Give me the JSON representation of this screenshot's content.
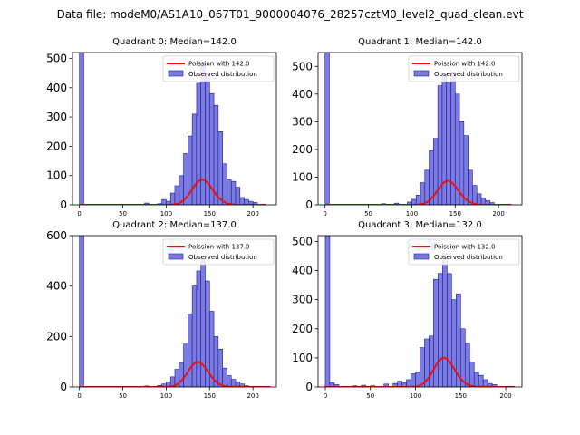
{
  "figure": {
    "suptitle": "Data file: modeM0/AS1A10_067T01_9000004076_28257cztM0_level2_quad_clean.evt",
    "colors": {
      "hist_fill": "#7b7be0",
      "hist_edge": "#1a1a9a",
      "poisson_line": "#e81010"
    }
  },
  "chart_data": [
    {
      "type": "bar",
      "title": "Quadrant 0: Median=142.0",
      "xlim": [
        -8,
        227
      ],
      "ylim": [
        0,
        520
      ],
      "xticks": [
        0,
        50,
        100,
        150,
        200
      ],
      "yticks": [
        0,
        100,
        200,
        300,
        400,
        500
      ],
      "bin_width": 5,
      "bins": [
        [
          0,
          520
        ],
        [
          75,
          6
        ],
        [
          90,
          4
        ],
        [
          95,
          18
        ],
        [
          100,
          12
        ],
        [
          105,
          40
        ],
        [
          110,
          65
        ],
        [
          115,
          100
        ],
        [
          120,
          175
        ],
        [
          125,
          235
        ],
        [
          130,
          310
        ],
        [
          135,
          415
        ],
        [
          140,
          480
        ],
        [
          145,
          450
        ],
        [
          150,
          380
        ],
        [
          155,
          340
        ],
        [
          160,
          250
        ],
        [
          165,
          140
        ],
        [
          170,
          85
        ],
        [
          175,
          80
        ],
        [
          180,
          60
        ],
        [
          185,
          25
        ],
        [
          190,
          18
        ],
        [
          195,
          12
        ],
        [
          200,
          8
        ]
      ],
      "curve": {
        "label": "Poission with 142.0",
        "lambda": 142.0,
        "scale": 2560,
        "x_range": [
          0,
          215
        ]
      },
      "legend": {
        "curve_label": "Poission with 142.0",
        "hist_label": "Observed distribution",
        "position": "top-right"
      }
    },
    {
      "type": "bar",
      "title": "Quadrant 1: Median=142.0",
      "xlim": [
        -8,
        227
      ],
      "ylim": [
        0,
        550
      ],
      "xticks": [
        0,
        50,
        100,
        150,
        200
      ],
      "yticks": [
        0,
        100,
        200,
        300,
        400,
        500
      ],
      "bin_width": 5,
      "bins": [
        [
          0,
          550
        ],
        [
          65,
          4
        ],
        [
          80,
          6
        ],
        [
          95,
          10
        ],
        [
          100,
          20
        ],
        [
          105,
          35
        ],
        [
          110,
          80
        ],
        [
          115,
          125
        ],
        [
          120,
          195
        ],
        [
          125,
          240
        ],
        [
          130,
          430
        ],
        [
          135,
          470
        ],
        [
          140,
          440
        ],
        [
          145,
          480
        ],
        [
          150,
          400
        ],
        [
          155,
          300
        ],
        [
          160,
          250
        ],
        [
          165,
          125
        ],
        [
          170,
          70
        ],
        [
          175,
          40
        ],
        [
          180,
          25
        ],
        [
          185,
          15
        ],
        [
          190,
          8
        ]
      ],
      "curve": {
        "label": "Poission with 142.0",
        "lambda": 142.0,
        "scale": 2575,
        "x_range": [
          0,
          215
        ]
      },
      "legend": {
        "curve_label": "Poission with 142.0",
        "hist_label": "Observed distribution",
        "position": "top-right"
      }
    },
    {
      "type": "bar",
      "title": "Quadrant 2: Median=137.0",
      "xlim": [
        -8,
        227
      ],
      "ylim": [
        0,
        600
      ],
      "xticks": [
        0,
        50,
        100,
        150,
        200
      ],
      "yticks": [
        0,
        200,
        400,
        600
      ],
      "bin_width": 5,
      "bins": [
        [
          0,
          600
        ],
        [
          75,
          4
        ],
        [
          90,
          6
        ],
        [
          95,
          12
        ],
        [
          100,
          20
        ],
        [
          105,
          40
        ],
        [
          110,
          70
        ],
        [
          115,
          95
        ],
        [
          120,
          170
        ],
        [
          125,
          290
        ],
        [
          130,
          400
        ],
        [
          135,
          460
        ],
        [
          140,
          510
        ],
        [
          145,
          420
        ],
        [
          150,
          300
        ],
        [
          155,
          200
        ],
        [
          160,
          150
        ],
        [
          165,
          75
        ],
        [
          170,
          45
        ],
        [
          175,
          30
        ],
        [
          180,
          20
        ],
        [
          185,
          12
        ],
        [
          190,
          5
        ]
      ],
      "curve": {
        "label": "Poission with 137.0",
        "lambda": 137.0,
        "scale": 2900,
        "x_range": [
          0,
          220
        ]
      },
      "legend": {
        "curve_label": "Poission with 137.0",
        "hist_label": "Observed distribution",
        "position": "top-right"
      }
    },
    {
      "type": "bar",
      "title": "Quadrant 3: Median=132.0",
      "xlim": [
        -8,
        218
      ],
      "ylim": [
        0,
        520
      ],
      "xticks": [
        0,
        50,
        100,
        150,
        200
      ],
      "yticks": [
        0,
        100,
        200,
        300,
        400,
        500
      ],
      "bin_width": 5,
      "bins": [
        [
          0,
          520
        ],
        [
          5,
          15
        ],
        [
          10,
          8
        ],
        [
          30,
          4
        ],
        [
          40,
          6
        ],
        [
          50,
          4
        ],
        [
          65,
          10
        ],
        [
          75,
          12
        ],
        [
          80,
          20
        ],
        [
          85,
          15
        ],
        [
          90,
          25
        ],
        [
          95,
          45
        ],
        [
          100,
          50
        ],
        [
          105,
          135
        ],
        [
          110,
          165
        ],
        [
          115,
          175
        ],
        [
          120,
          370
        ],
        [
          125,
          390
        ],
        [
          130,
          460
        ],
        [
          135,
          390
        ],
        [
          140,
          300
        ],
        [
          145,
          320
        ],
        [
          150,
          200
        ],
        [
          155,
          150
        ],
        [
          160,
          85
        ],
        [
          165,
          50
        ],
        [
          170,
          40
        ],
        [
          175,
          25
        ],
        [
          180,
          12
        ],
        [
          185,
          8
        ]
      ],
      "curve": {
        "label": "Poission with 132.0",
        "lambda": 132.0,
        "scale": 2880,
        "x_range": [
          0,
          210
        ]
      },
      "legend": {
        "curve_label": "Poission with 132.0",
        "hist_label": "Observed distribution",
        "position": "top-right"
      }
    }
  ]
}
